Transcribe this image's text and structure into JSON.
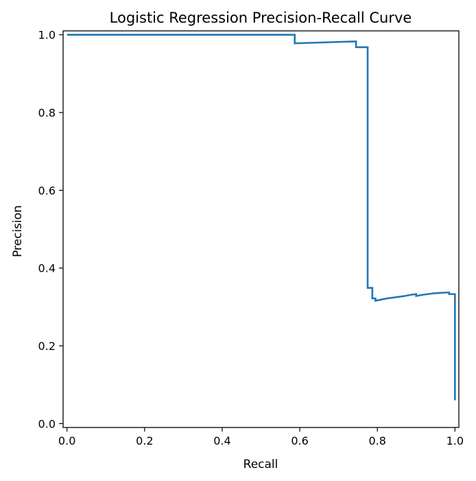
{
  "chart_data": {
    "type": "line",
    "step": "post",
    "title": "Logistic Regression Precision-Recall Curve",
    "xlabel": "Recall",
    "ylabel": "Precision",
    "xlim": [
      -0.01,
      1.01
    ],
    "ylim": [
      -0.01,
      1.01
    ],
    "xticks": [
      0.0,
      0.2,
      0.4,
      0.6,
      0.8,
      1.0
    ],
    "xtick_labels": [
      "0.0",
      "0.2",
      "0.4",
      "0.6",
      "0.8",
      "1.0"
    ],
    "yticks": [
      0.0,
      0.2,
      0.4,
      0.6,
      0.8,
      1.0
    ],
    "ytick_labels": [
      "0.0",
      "0.2",
      "0.4",
      "0.6",
      "0.8",
      "1.0"
    ],
    "grid": false,
    "line_color": "#1f77b4",
    "series": [
      {
        "x": [
          0.0,
          0.587,
          0.587,
          0.745,
          0.745,
          0.775,
          0.775,
          0.782,
          0.782,
          0.787,
          0.787,
          0.795,
          0.795,
          0.81,
          0.825,
          0.84,
          0.855,
          0.87,
          0.885,
          0.9,
          0.9,
          0.915,
          0.93,
          0.945,
          0.96,
          0.975,
          0.985,
          0.985,
          1.0,
          1.0
        ],
        "y": [
          1.0,
          1.0,
          0.978,
          0.983,
          0.968,
          0.968,
          0.349,
          0.349,
          0.349,
          0.349,
          0.322,
          0.322,
          0.316,
          0.319,
          0.322,
          0.324,
          0.326,
          0.328,
          0.331,
          0.333,
          0.328,
          0.331,
          0.333,
          0.335,
          0.336,
          0.337,
          0.337,
          0.333,
          0.333,
          0.06
        ]
      }
    ]
  }
}
